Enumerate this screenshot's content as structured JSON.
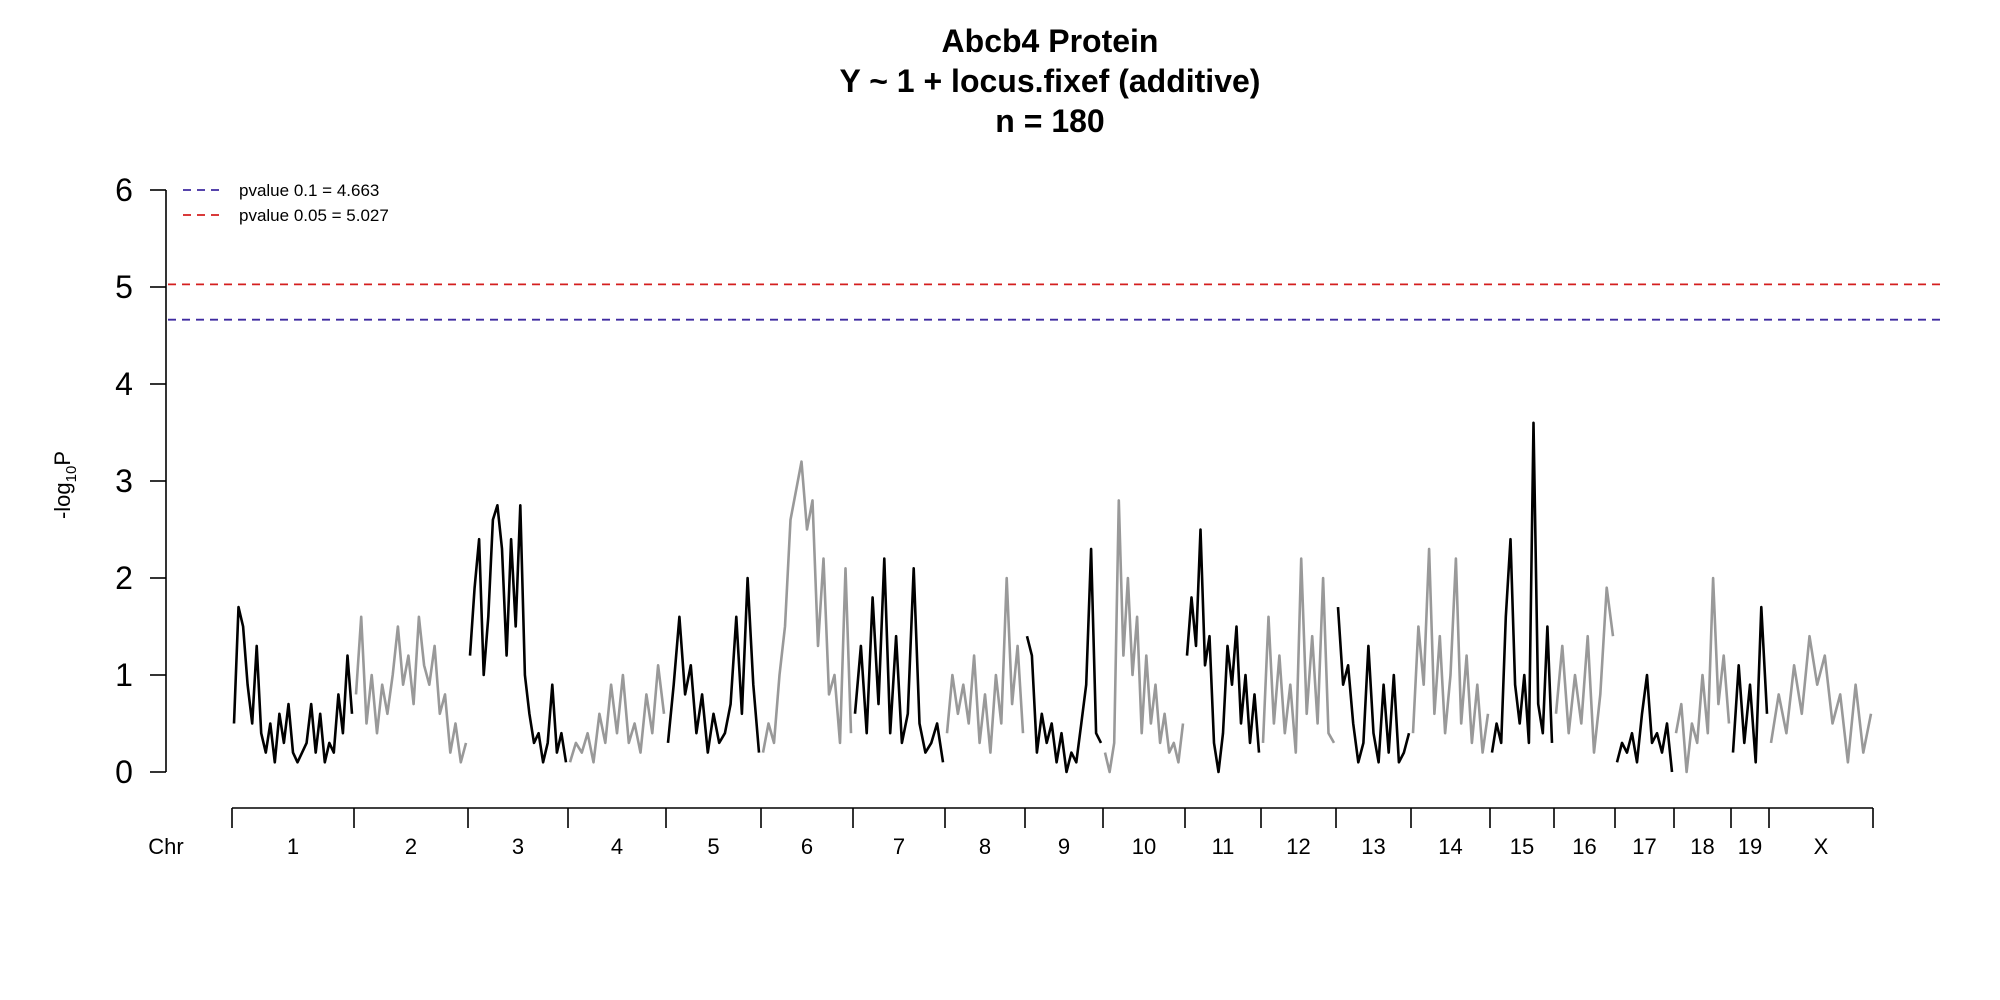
{
  "chart_data": {
    "type": "line",
    "title": [
      "Abcb4 Protein",
      "Y ~ 1 + locus.fixef (additive)",
      "n = 180"
    ],
    "ylabel": {
      "main": "-log",
      "sub": "10",
      "tail": "P"
    },
    "ylim": [
      0,
      6
    ],
    "yticks": [
      "0",
      "1",
      "2",
      "3",
      "4",
      "5",
      "6"
    ],
    "xaxis_prefix": "Chr",
    "colors": {
      "odd": "#000000",
      "even": "#999999",
      "pvalue_0_1": "#3f2aa0",
      "pvalue_0_05": "#d41f1f"
    },
    "thresholds": [
      {
        "label": "pvalue 0.1 = 4.663",
        "value": 4.663,
        "color": "#3f2aa0"
      },
      {
        "label": "pvalue 0.05 = 5.027",
        "value": 5.027,
        "color": "#d41f1f"
      }
    ],
    "chromosomes": [
      {
        "name": "1",
        "values": [
          0.5,
          1.7,
          1.5,
          0.9,
          0.5,
          1.3,
          0.4,
          0.2,
          0.5,
          0.1,
          0.6,
          0.3,
          0.7,
          0.2,
          0.1,
          0.2,
          0.3,
          0.7,
          0.2,
          0.6,
          0.1,
          0.3,
          0.2,
          0.8,
          0.4,
          1.2,
          0.6
        ]
      },
      {
        "name": "2",
        "values": [
          0.8,
          1.6,
          0.5,
          1.0,
          0.4,
          0.9,
          0.6,
          1.0,
          1.5,
          0.9,
          1.2,
          0.7,
          1.6,
          1.1,
          0.9,
          1.3,
          0.6,
          0.8,
          0.2,
          0.5,
          0.1,
          0.3
        ]
      },
      {
        "name": "3",
        "values": [
          1.2,
          1.9,
          2.4,
          1.0,
          1.6,
          2.6,
          2.75,
          2.3,
          1.2,
          2.4,
          1.5,
          2.75,
          1.0,
          0.6,
          0.3,
          0.4,
          0.1,
          0.3,
          0.9,
          0.2,
          0.4,
          0.1
        ]
      },
      {
        "name": "4",
        "values": [
          0.1,
          0.3,
          0.2,
          0.4,
          0.1,
          0.6,
          0.3,
          0.9,
          0.4,
          1.0,
          0.3,
          0.5,
          0.2,
          0.8,
          0.4,
          1.1,
          0.6
        ]
      },
      {
        "name": "5",
        "values": [
          0.3,
          0.9,
          1.6,
          0.8,
          1.1,
          0.4,
          0.8,
          0.2,
          0.6,
          0.3,
          0.4,
          0.7,
          1.6,
          0.6,
          2.0,
          0.9,
          0.2
        ]
      },
      {
        "name": "6",
        "values": [
          0.2,
          0.5,
          0.3,
          1.0,
          1.5,
          2.6,
          2.9,
          3.2,
          2.5,
          2.8,
          1.3,
          2.2,
          0.8,
          1.0,
          0.3,
          2.1,
          0.4
        ]
      },
      {
        "name": "7",
        "values": [
          0.6,
          1.3,
          0.4,
          1.8,
          0.7,
          2.2,
          0.4,
          1.4,
          0.3,
          0.6,
          2.1,
          0.5,
          0.2,
          0.3,
          0.5,
          0.1
        ]
      },
      {
        "name": "8",
        "values": [
          0.4,
          1.0,
          0.6,
          0.9,
          0.5,
          1.2,
          0.3,
          0.8,
          0.2,
          1.0,
          0.5,
          2.0,
          0.7,
          1.3,
          0.4
        ]
      },
      {
        "name": "9",
        "values": [
          1.4,
          1.2,
          0.2,
          0.6,
          0.3,
          0.5,
          0.1,
          0.4,
          0.0,
          0.2,
          0.1,
          0.5,
          0.9,
          2.3,
          0.4,
          0.3
        ]
      },
      {
        "name": "10",
        "values": [
          0.2,
          0.0,
          0.3,
          2.8,
          1.2,
          2.0,
          1.0,
          1.6,
          0.4,
          1.2,
          0.5,
          0.9,
          0.3,
          0.6,
          0.2,
          0.3,
          0.1,
          0.5
        ]
      },
      {
        "name": "11",
        "values": [
          1.2,
          1.8,
          1.3,
          2.5,
          1.1,
          1.4,
          0.3,
          0.0,
          0.4,
          1.3,
          0.9,
          1.5,
          0.5,
          1.0,
          0.3,
          0.8,
          0.2
        ]
      },
      {
        "name": "12",
        "values": [
          0.3,
          1.6,
          0.5,
          1.2,
          0.4,
          0.9,
          0.2,
          2.2,
          0.6,
          1.4,
          0.5,
          2.0,
          0.4,
          0.3
        ]
      },
      {
        "name": "13",
        "values": [
          1.7,
          0.9,
          1.1,
          0.5,
          0.1,
          0.3,
          1.3,
          0.4,
          0.1,
          0.9,
          0.2,
          1.0,
          0.1,
          0.2,
          0.4
        ]
      },
      {
        "name": "14",
        "values": [
          0.4,
          1.5,
          0.9,
          2.3,
          0.6,
          1.4,
          0.4,
          1.0,
          2.2,
          0.5,
          1.2,
          0.3,
          0.9,
          0.2,
          0.6
        ]
      },
      {
        "name": "15",
        "values": [
          0.2,
          0.5,
          0.3,
          1.6,
          2.4,
          0.9,
          0.5,
          1.0,
          0.3,
          3.6,
          0.7,
          0.4,
          1.5,
          0.3
        ]
      },
      {
        "name": "16",
        "values": [
          0.6,
          1.3,
          0.4,
          1.0,
          0.5,
          1.4,
          0.2,
          0.8,
          1.9,
          1.4
        ]
      },
      {
        "name": "17",
        "values": [
          0.1,
          0.3,
          0.2,
          0.4,
          0.1,
          0.6,
          1.0,
          0.3,
          0.4,
          0.2,
          0.5,
          0.0
        ]
      },
      {
        "name": "18",
        "values": [
          0.4,
          0.7,
          0.0,
          0.5,
          0.3,
          1.0,
          0.4,
          2.0,
          0.7,
          1.2,
          0.5
        ]
      },
      {
        "name": "19",
        "values": [
          0.2,
          1.1,
          0.3,
          0.9,
          0.1,
          1.7,
          0.6
        ]
      },
      {
        "name": "X",
        "values": [
          0.3,
          0.8,
          0.4,
          1.1,
          0.6,
          1.4,
          0.9,
          1.2,
          0.5,
          0.8,
          0.1,
          0.9,
          0.2,
          0.6
        ]
      }
    ]
  }
}
